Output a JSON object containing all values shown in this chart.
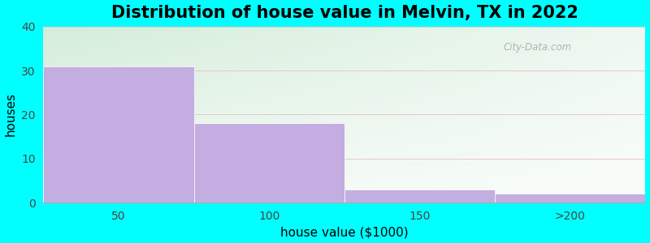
{
  "title": "Distribution of house value in Melvin, TX in 2022",
  "xlabel": "house value ($1000)",
  "ylabel": "houses",
  "categories": [
    "50",
    "100",
    "150",
    ">200"
  ],
  "values": [
    31,
    18,
    3,
    2
  ],
  "bar_color": "#C4ADE0",
  "bar_edgecolor": "#C4ADE0",
  "ylim": [
    0,
    40
  ],
  "yticks": [
    0,
    10,
    20,
    30,
    40
  ],
  "background_color": "#00FFFF",
  "plot_bg_topleft": "#d4edda",
  "plot_bg_bottomright": "#f8fff8",
  "grid_color": "#e8c8c8",
  "watermark": "City-Data.com",
  "title_fontsize": 15,
  "label_fontsize": 11,
  "tick_fontsize": 10,
  "bar_edges": [
    0,
    1,
    2,
    3,
    4
  ],
  "n_bars": 4
}
